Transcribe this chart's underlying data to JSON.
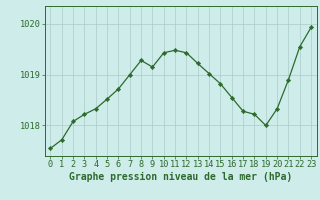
{
  "x": [
    0,
    1,
    2,
    3,
    4,
    5,
    6,
    7,
    8,
    9,
    10,
    11,
    12,
    13,
    14,
    15,
    16,
    17,
    18,
    19,
    20,
    21,
    22,
    23
  ],
  "y": [
    1017.55,
    1017.72,
    1018.08,
    1018.22,
    1018.33,
    1018.52,
    1018.72,
    1019.0,
    1019.28,
    1019.15,
    1019.43,
    1019.48,
    1019.43,
    1019.22,
    1019.02,
    1018.82,
    1018.55,
    1018.28,
    1018.22,
    1018.0,
    1018.33,
    1018.9,
    1019.55,
    1019.93
  ],
  "line_color": "#2d6a2d",
  "marker_color": "#2d6a2d",
  "bg_color": "#ceecea",
  "grid_color": "#aaccc8",
  "axis_color": "#2d6a2d",
  "tick_label_color": "#2d6a2d",
  "xlabel": "Graphe pression niveau de la mer (hPa)",
  "ylim_min": 1017.4,
  "ylim_max": 1020.35,
  "yticks": [
    1018,
    1019,
    1020
  ],
  "xticks": [
    0,
    1,
    2,
    3,
    4,
    5,
    6,
    7,
    8,
    9,
    10,
    11,
    12,
    13,
    14,
    15,
    16,
    17,
    18,
    19,
    20,
    21,
    22,
    23
  ],
  "xlabel_fontsize": 7.0,
  "tick_fontsize": 6.2,
  "marker_size": 2.2,
  "line_width": 0.9
}
